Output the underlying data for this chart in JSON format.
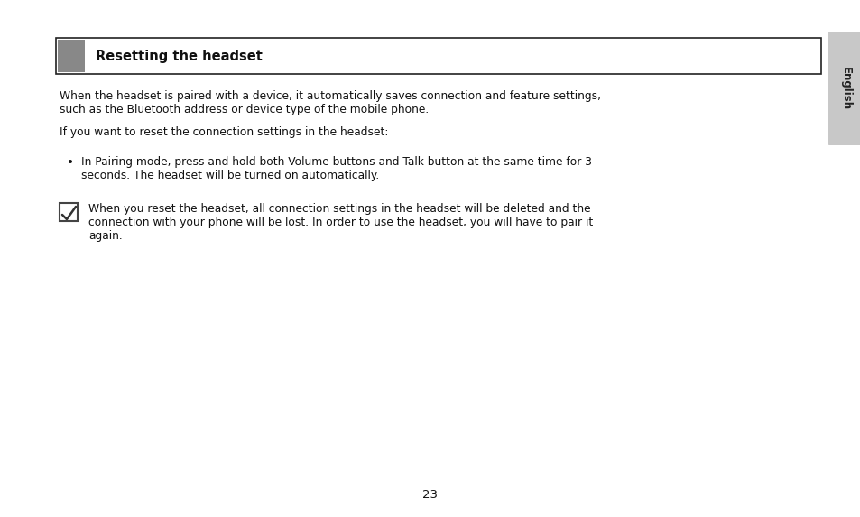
{
  "title": "Resetting the headset",
  "title_fontsize": 10.5,
  "body_fontsize": 8.8,
  "note_fontsize": 8.8,
  "page_number": "23",
  "bg_color": "#ffffff",
  "header_box_color": "#ffffff",
  "header_box_border": "#222222",
  "header_square_color": "#888888",
  "tab_bg_color": "#c8c8c8",
  "tab_text": "English",
  "para1_line1": "When the headset is paired with a device, it automatically saves connection and feature settings,",
  "para1_line2": "such as the Bluetooth address or device type of the mobile phone.",
  "para2": "If you want to reset the connection settings in the headset:",
  "bullet1_line1": "In Pairing mode, press and hold both Volume buttons and Talk button at the same time for 3",
  "bullet1_line2": "seconds. The headset will be turned on automatically.",
  "note_line1": "When you reset the headset, all connection settings in the headset will be deleted and the",
  "note_line2": "connection with your phone will be lost. In order to use the headset, you will have to pair it",
  "note_line3": "again."
}
